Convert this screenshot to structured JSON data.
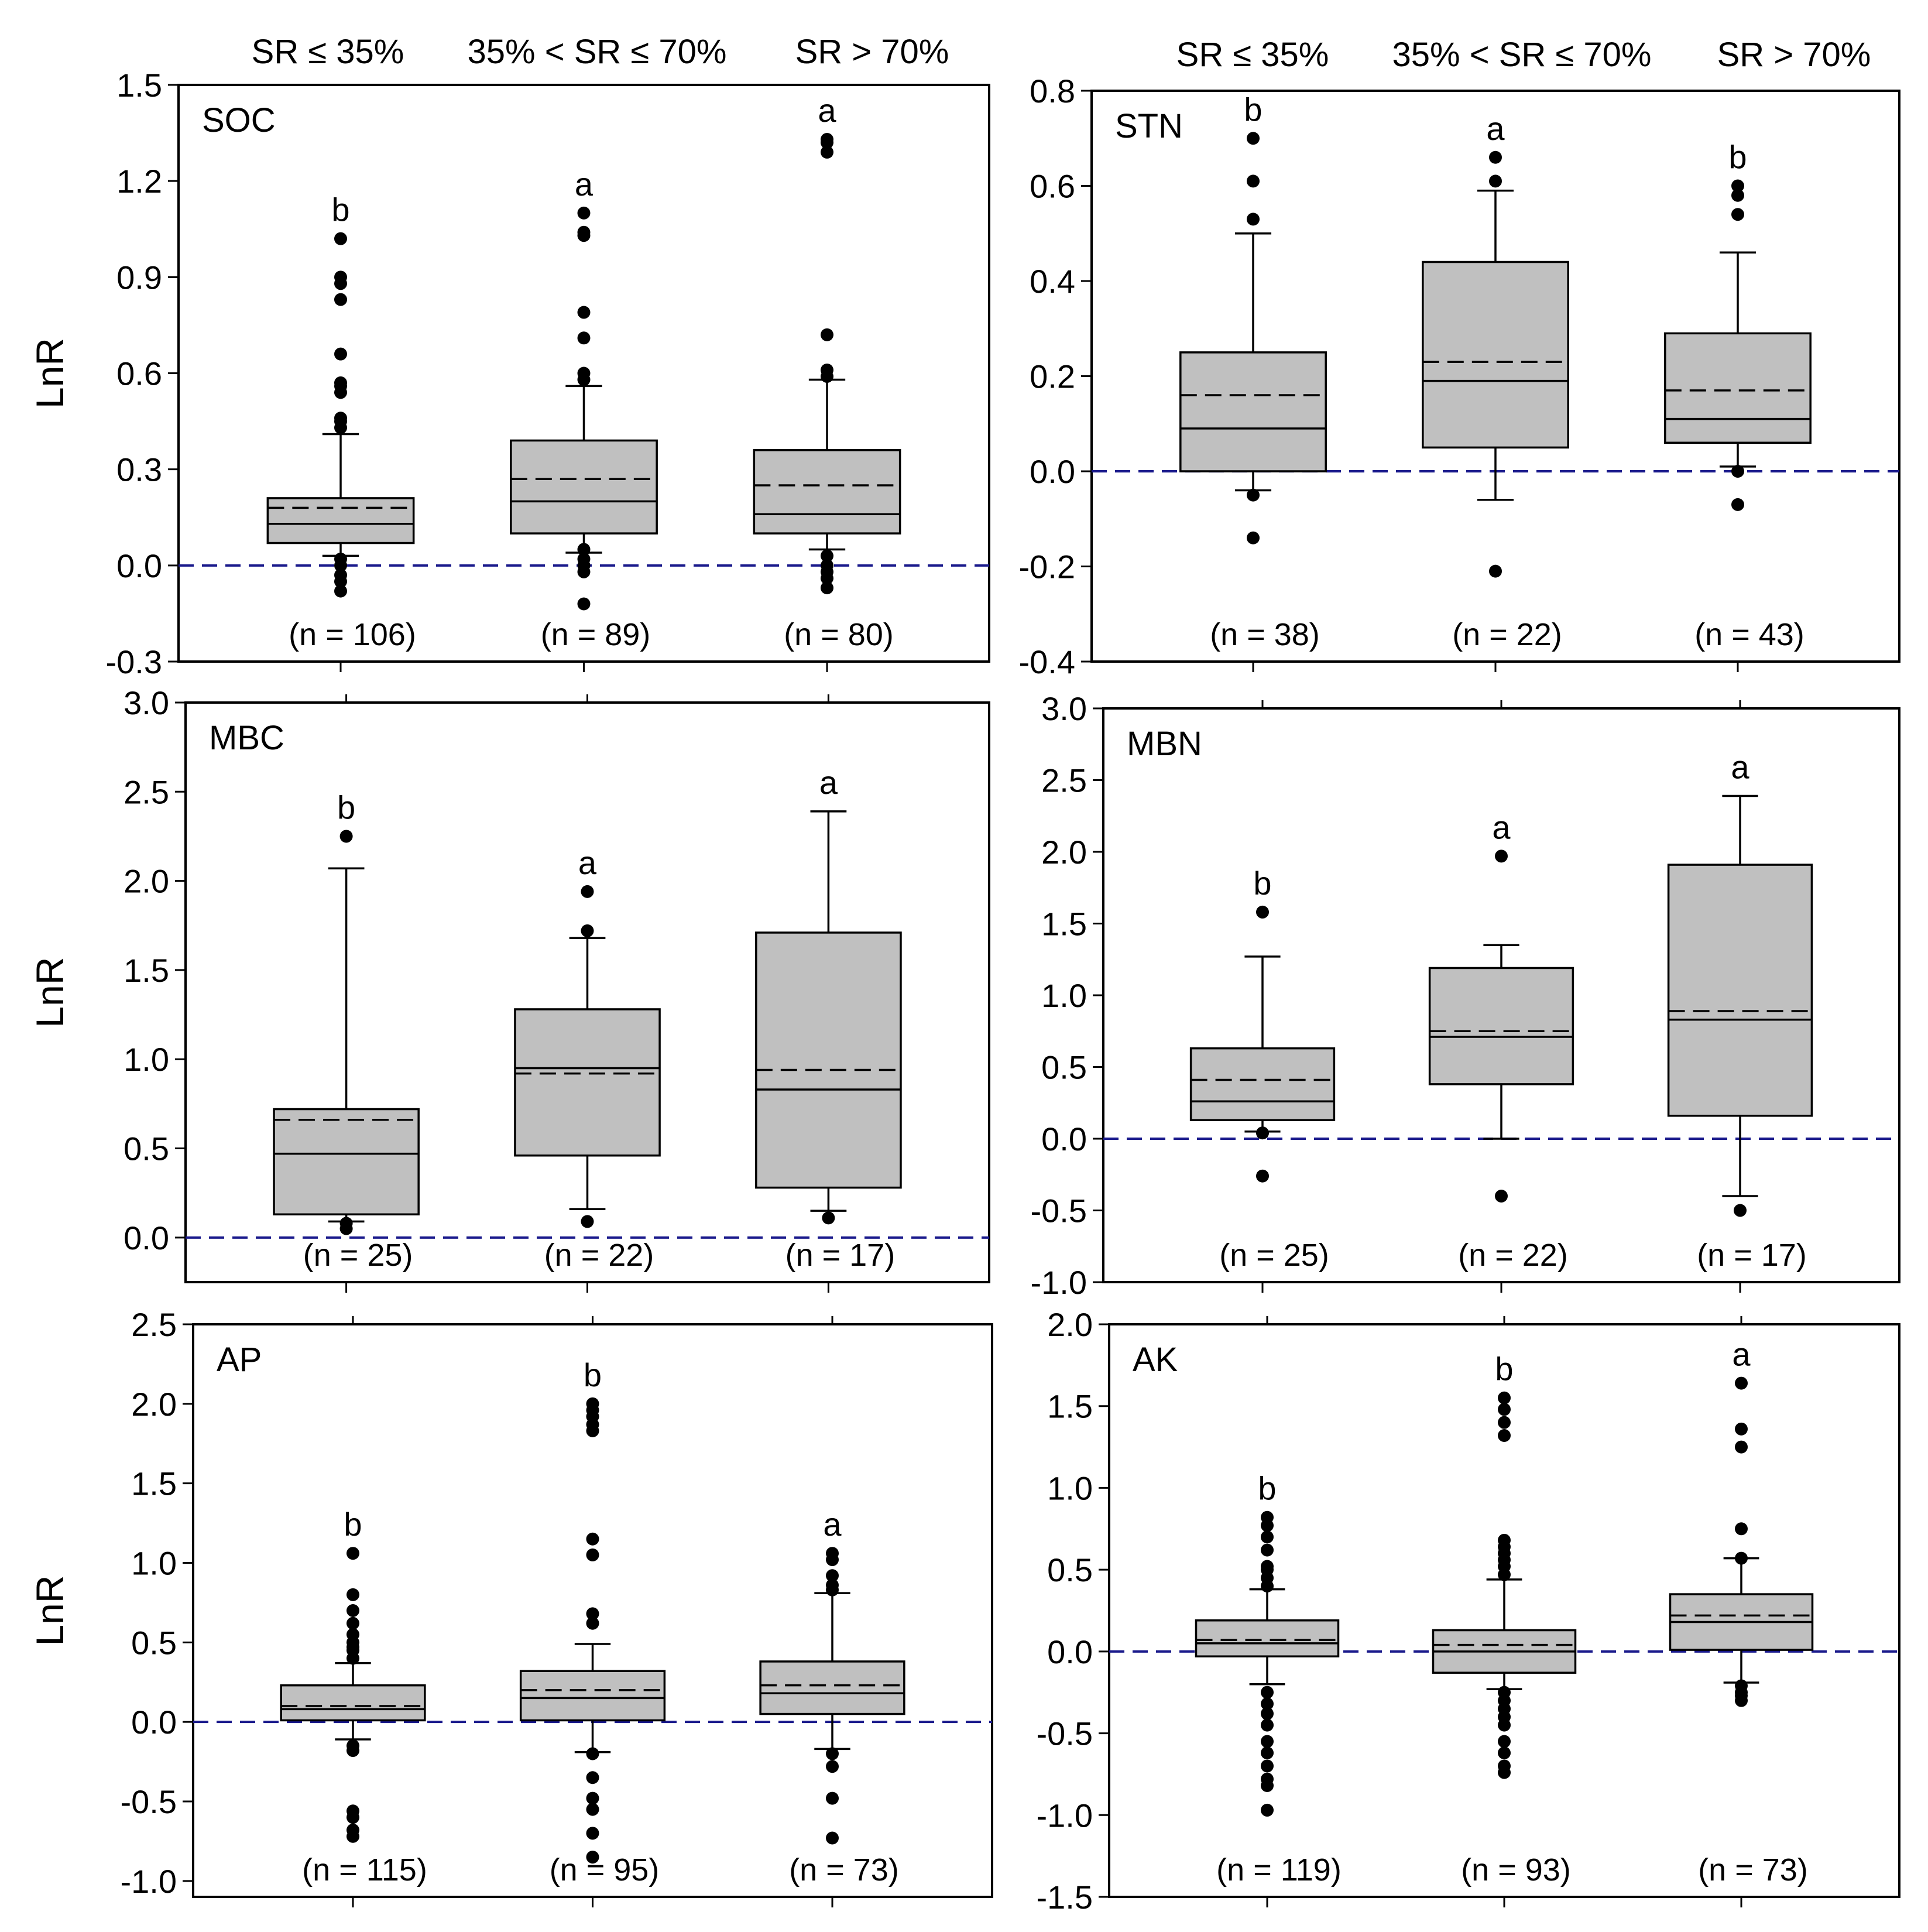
{
  "figure": {
    "header_left": [
      "SR ≤ 35%",
      "35% < SR ≤ 70%",
      "SR > 70%"
    ],
    "header_right": [
      "SR ≤ 35%",
      "35% < SR ≤ 70%",
      "SR > 70%"
    ],
    "colors": {
      "box_fill": "#c0c0c0",
      "stroke": "#000000",
      "zero_line": "#1a1a8c",
      "outlier": "#000000"
    }
  },
  "chart_data": [
    {
      "type": "box",
      "panel_label": "SOC",
      "ylabel": "LnR",
      "yticks": [
        "1.5",
        "1.2",
        "0.9",
        "0.6",
        "0.3",
        "0.0",
        "-0.3"
      ],
      "ylim": [
        -0.3,
        1.5
      ],
      "groups": [
        {
          "category": "SR ≤ 35%",
          "n_label": "(n = 106)",
          "letter": "b",
          "whisker_low": 0.03,
          "q1": 0.07,
          "median": 0.13,
          "mean": 0.18,
          "q3": 0.21,
          "whisker_high": 0.41,
          "outliers": [
            -0.08,
            -0.05,
            -0.03,
            0.0,
            0.02,
            0.43,
            0.45,
            0.46,
            0.54,
            0.56,
            0.57,
            0.66,
            0.83,
            0.88,
            0.9,
            1.02
          ]
        },
        {
          "category": "35% < SR ≤ 70%",
          "n_label": "(n = 89)",
          "letter": "a",
          "whisker_low": 0.04,
          "q1": 0.1,
          "median": 0.2,
          "mean": 0.27,
          "q3": 0.39,
          "whisker_high": 0.56,
          "outliers": [
            -0.12,
            -0.02,
            0.0,
            0.02,
            0.05,
            0.58,
            0.6,
            0.71,
            0.79,
            1.03,
            1.04,
            1.1
          ]
        },
        {
          "category": "SR > 70%",
          "n_label": "(n = 80)",
          "letter": "a",
          "whisker_low": 0.05,
          "q1": 0.1,
          "median": 0.16,
          "mean": 0.25,
          "q3": 0.36,
          "whisker_high": 0.58,
          "outliers": [
            -0.07,
            -0.04,
            -0.02,
            0.0,
            0.03,
            0.59,
            0.61,
            0.72,
            1.29,
            1.32,
            1.33
          ]
        }
      ]
    },
    {
      "type": "box",
      "panel_label": "STN",
      "ylabel": "",
      "yticks": [
        "0.8",
        "0.6",
        "0.4",
        "0.2",
        "0.0",
        "-0.2",
        "-0.4"
      ],
      "ylim": [
        -0.4,
        0.8
      ],
      "groups": [
        {
          "category": "SR ≤ 35%",
          "n_label": "(n = 38)",
          "letter": "b",
          "whisker_low": -0.04,
          "q1": 0.0,
          "median": 0.09,
          "mean": 0.16,
          "q3": 0.25,
          "whisker_high": 0.5,
          "outliers": [
            -0.14,
            -0.05,
            0.53,
            0.61,
            0.7
          ]
        },
        {
          "category": "35% < SR ≤ 70%",
          "n_label": "(n = 22)",
          "letter": "a",
          "whisker_low": -0.06,
          "q1": 0.05,
          "median": 0.19,
          "mean": 0.23,
          "q3": 0.44,
          "whisker_high": 0.59,
          "outliers": [
            -0.21,
            0.61,
            0.66
          ]
        },
        {
          "category": "SR > 70%",
          "n_label": "(n = 43)",
          "letter": "b",
          "whisker_low": 0.01,
          "q1": 0.06,
          "median": 0.11,
          "mean": 0.17,
          "q3": 0.29,
          "whisker_high": 0.46,
          "outliers": [
            -0.07,
            0.0,
            0.54,
            0.58,
            0.6
          ]
        }
      ]
    },
    {
      "type": "box",
      "panel_label": "MBC",
      "ylabel": "LnR",
      "yticks": [
        "3.0",
        "2.5",
        "2.0",
        "1.5",
        "1.0",
        "0.5",
        "0.0"
      ],
      "ylim": [
        -0.25,
        3.0
      ],
      "groups": [
        {
          "category": "SR ≤ 35%",
          "n_label": "(n = 25)",
          "letter": "b",
          "whisker_low": 0.09,
          "q1": 0.13,
          "median": 0.47,
          "mean": 0.66,
          "q3": 0.72,
          "whisker_high": 2.07,
          "outliers": [
            0.05,
            0.08,
            2.25
          ]
        },
        {
          "category": "35% < SR ≤ 70%",
          "n_label": "(n = 22)",
          "letter": "a",
          "whisker_low": 0.16,
          "q1": 0.46,
          "median": 0.95,
          "mean": 0.92,
          "q3": 1.28,
          "whisker_high": 1.68,
          "outliers": [
            0.09,
            1.72,
            1.94
          ]
        },
        {
          "category": "SR > 70%",
          "n_label": "(n = 17)",
          "letter": "a",
          "whisker_low": 0.15,
          "q1": 0.28,
          "median": 0.83,
          "mean": 0.94,
          "q3": 1.71,
          "whisker_high": 2.39,
          "outliers": [
            0.11
          ]
        }
      ]
    },
    {
      "type": "box",
      "panel_label": "MBN",
      "ylabel": "",
      "yticks": [
        "3.0",
        "2.5",
        "2.0",
        "1.5",
        "1.0",
        "0.5",
        "0.0",
        "-0.5",
        "-1.0"
      ],
      "ylim": [
        -1.0,
        3.0
      ],
      "groups": [
        {
          "category": "SR ≤ 35%",
          "n_label": "(n = 25)",
          "letter": "b",
          "whisker_low": 0.05,
          "q1": 0.13,
          "median": 0.26,
          "mean": 0.41,
          "q3": 0.63,
          "whisker_high": 1.27,
          "outliers": [
            -0.26,
            0.04,
            1.58
          ]
        },
        {
          "category": "35% < SR ≤ 70%",
          "n_label": "(n = 22)",
          "letter": "a",
          "whisker_low": 0.0,
          "q1": 0.38,
          "median": 0.71,
          "mean": 0.75,
          "q3": 1.19,
          "whisker_high": 1.35,
          "outliers": [
            -0.4,
            1.97
          ]
        },
        {
          "category": "SR > 70%",
          "n_label": "(n = 17)",
          "letter": "a",
          "whisker_low": -0.4,
          "q1": 0.16,
          "median": 0.83,
          "mean": 0.89,
          "q3": 1.91,
          "whisker_high": 2.39,
          "outliers": [
            -0.5
          ]
        }
      ]
    },
    {
      "type": "box",
      "panel_label": "AP",
      "ylabel": "LnR",
      "yticks": [
        "2.5",
        "2.0",
        "1.5",
        "1.0",
        "0.5",
        "0.0",
        "-0.5",
        "-1.0"
      ],
      "ylim": [
        -1.1,
        2.5
      ],
      "groups": [
        {
          "category": "SR ≤ 35%",
          "n_label": "(n = 115)",
          "letter": "b",
          "whisker_low": -0.11,
          "q1": 0.01,
          "median": 0.08,
          "mean": 0.1,
          "q3": 0.23,
          "whisker_high": 0.37,
          "outliers": [
            -0.72,
            -0.68,
            -0.6,
            -0.56,
            -0.18,
            -0.15,
            0.4,
            0.45,
            0.47,
            0.5,
            0.55,
            0.62,
            0.7,
            0.8,
            1.06
          ]
        },
        {
          "category": "35% < SR ≤ 70%",
          "n_label": "(n = 95)",
          "letter": "b",
          "whisker_low": -0.19,
          "q1": 0.01,
          "median": 0.15,
          "mean": 0.2,
          "q3": 0.32,
          "whisker_high": 0.49,
          "outliers": [
            -0.85,
            -0.7,
            -0.55,
            -0.48,
            -0.35,
            -0.2,
            0.62,
            0.68,
            1.05,
            1.15,
            1.83,
            1.87,
            1.92,
            1.96,
            2.0
          ]
        },
        {
          "category": "SR > 70%",
          "n_label": "(n = 73)",
          "letter": "a",
          "whisker_low": -0.17,
          "q1": 0.05,
          "median": 0.18,
          "mean": 0.23,
          "q3": 0.38,
          "whisker_high": 0.81,
          "outliers": [
            -0.73,
            -0.48,
            -0.28,
            -0.2,
            0.83,
            0.86,
            0.92,
            1.02,
            1.06
          ]
        }
      ]
    },
    {
      "type": "box",
      "panel_label": "AK",
      "ylabel": "",
      "yticks": [
        "2.0",
        "1.5",
        "1.0",
        "0.5",
        "0.0",
        "-0.5",
        "-1.0",
        "-1.5"
      ],
      "ylim": [
        -1.5,
        2.0
      ],
      "groups": [
        {
          "category": "SR ≤ 35%",
          "n_label": "(n = 119)",
          "letter": "b",
          "whisker_low": -0.2,
          "q1": -0.03,
          "median": 0.05,
          "mean": 0.07,
          "q3": 0.19,
          "whisker_high": 0.38,
          "outliers": [
            -0.97,
            -0.82,
            -0.78,
            -0.7,
            -0.62,
            -0.55,
            -0.45,
            -0.38,
            -0.32,
            -0.25,
            0.4,
            0.45,
            0.5,
            0.52,
            0.62,
            0.7,
            0.77,
            0.82
          ]
        },
        {
          "category": "35% < SR ≤ 70%",
          "n_label": "(n = 93)",
          "letter": "b",
          "whisker_low": -0.23,
          "q1": -0.13,
          "median": 0.0,
          "mean": 0.04,
          "q3": 0.13,
          "whisker_high": 0.44,
          "outliers": [
            -0.74,
            -0.7,
            -0.62,
            -0.55,
            -0.45,
            -0.4,
            -0.35,
            -0.3,
            -0.25,
            0.47,
            0.52,
            0.56,
            0.6,
            0.64,
            0.68,
            1.32,
            1.4,
            1.48,
            1.55
          ]
        },
        {
          "category": "SR > 70%",
          "n_label": "(n = 73)",
          "letter": "a",
          "whisker_low": -0.19,
          "q1": 0.01,
          "median": 0.18,
          "mean": 0.22,
          "q3": 0.35,
          "whisker_high": 0.57,
          "outliers": [
            -0.3,
            -0.27,
            -0.25,
            -0.21,
            0.57,
            0.75,
            1.25,
            1.36,
            1.64
          ]
        }
      ]
    }
  ]
}
